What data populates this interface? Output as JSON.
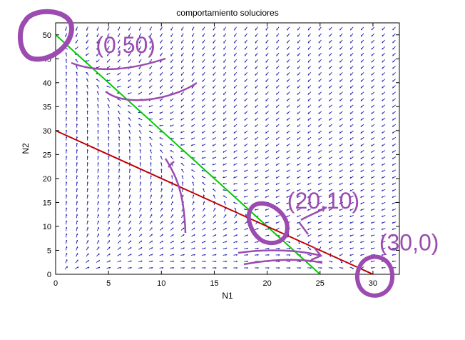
{
  "chart_data": {
    "type": "line",
    "title": "comportamiento soluciores",
    "xlabel": "N1",
    "ylabel": "N2",
    "xlim": [
      0,
      32.5
    ],
    "ylim": [
      0,
      52.5
    ],
    "xticks": [
      0,
      5,
      10,
      15,
      20,
      25,
      30
    ],
    "yticks": [
      0,
      5,
      10,
      15,
      20,
      25,
      30,
      35,
      40,
      45,
      50
    ],
    "grid": false,
    "series": [
      {
        "color": "#00cc00",
        "x": [
          0,
          25
        ],
        "y": [
          50,
          0
        ]
      },
      {
        "color": "#c00000",
        "x": [
          0,
          30
        ],
        "y": [
          30,
          0
        ]
      }
    ],
    "vector_field": {
      "color": "#1f1fb0"
    },
    "annotations": [
      {
        "text": "(0,50)",
        "x": 3.8,
        "y": 46.2,
        "color": "#9c4bb0"
      },
      {
        "text": "(20,10)",
        "x": 21.9,
        "y": 13.7,
        "color": "#9c4bb0"
      },
      {
        "text": "(30,0)",
        "x": 30.6,
        "y": 5.0,
        "color": "#9c4bb0"
      }
    ]
  }
}
